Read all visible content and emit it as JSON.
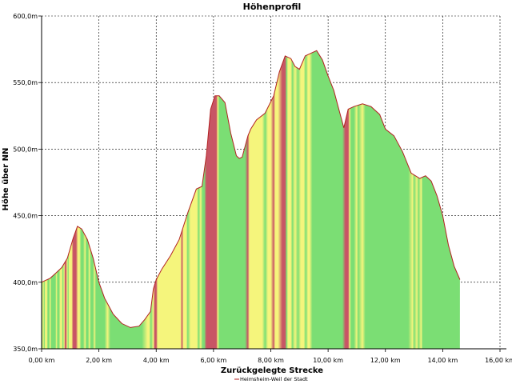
{
  "chart_data": {
    "type": "area",
    "title": "Höhenprofil",
    "xlabel": "Zurückgelegte Strecke",
    "ylabel": "Höhe über NN",
    "xlim": [
      0,
      16
    ],
    "ylim": [
      350,
      600
    ],
    "xticks": [
      0,
      2,
      4,
      6,
      8,
      10,
      12,
      14,
      16
    ],
    "xtick_labels": [
      "0,00 km",
      "2,00 km",
      "4,00 km",
      "6,00 km",
      "8,00 km",
      "10,00 km",
      "12,00 km",
      "14,00 km",
      "16,00 km"
    ],
    "yticks": [
      350,
      400,
      450,
      500,
      550,
      600
    ],
    "ytick_labels": [
      "350,0m",
      "400,0m",
      "450,0m",
      "500,0m",
      "550,0m",
      "600,0m"
    ],
    "grid": true,
    "legend": {
      "placement": "bottom-center"
    },
    "series": [
      {
        "name": "Heimsheim-Weil der Stadt",
        "line_color": "#b22222",
        "x": [
          0,
          0.1,
          0.3,
          0.5,
          0.7,
          0.9,
          1.1,
          1.25,
          1.4,
          1.6,
          1.8,
          2.0,
          2.2,
          2.5,
          2.8,
          3.1,
          3.4,
          3.6,
          3.8,
          3.9,
          4.0,
          4.2,
          4.5,
          4.8,
          5.1,
          5.4,
          5.6,
          5.75,
          5.9,
          6.05,
          6.2,
          6.4,
          6.6,
          6.8,
          6.9,
          7.0,
          7.2,
          7.3,
          7.5,
          7.8,
          8.1,
          8.3,
          8.5,
          8.7,
          8.85,
          9.0,
          9.2,
          9.4,
          9.6,
          9.8,
          10.0,
          10.2,
          10.4,
          10.55,
          10.7,
          10.9,
          11.2,
          11.5,
          11.8,
          12.0,
          12.3,
          12.6,
          12.9,
          13.2,
          13.4,
          13.6,
          13.8,
          14.0,
          14.2,
          14.4,
          14.6
        ],
        "y": [
          400,
          401,
          403,
          407,
          411,
          418,
          433,
          442,
          440,
          432,
          418,
          400,
          388,
          376,
          369,
          366,
          367,
          372,
          378,
          395,
          402,
          410,
          420,
          432,
          452,
          470,
          472,
          495,
          530,
          540,
          540,
          535,
          512,
          495,
          493,
          494,
          510,
          515,
          522,
          527,
          540,
          558,
          570,
          568,
          562,
          560,
          570,
          572,
          574,
          567,
          555,
          544,
          528,
          516,
          530,
          532,
          534,
          532,
          526,
          515,
          510,
          498,
          482,
          478,
          480,
          476,
          465,
          450,
          428,
          412,
          402
        ]
      }
    ],
    "gradient_colors": {
      "green": "#7bde74",
      "yellow": "#f5f57c",
      "red": "#c85565"
    },
    "gradient_stops": [
      [
        0.0,
        "green"
      ],
      [
        0.06,
        "yellow"
      ],
      [
        0.09,
        "green"
      ],
      [
        0.13,
        "yellow"
      ],
      [
        0.18,
        "yellow"
      ],
      [
        0.22,
        "green"
      ],
      [
        0.26,
        "green"
      ],
      [
        0.3,
        "yellow"
      ],
      [
        0.34,
        "green"
      ],
      [
        0.48,
        "green"
      ],
      [
        0.52,
        "yellow"
      ],
      [
        0.56,
        "green"
      ],
      [
        0.6,
        "green"
      ],
      [
        0.66,
        "yellow"
      ],
      [
        0.7,
        "yellow"
      ],
      [
        0.74,
        "green"
      ],
      [
        0.79,
        "yellow"
      ],
      [
        0.82,
        "red"
      ],
      [
        0.85,
        "red"
      ],
      [
        0.89,
        "yellow"
      ],
      [
        0.93,
        "green"
      ],
      [
        0.96,
        "yellow"
      ],
      [
        1.0,
        "yellow"
      ],
      [
        1.05,
        "yellow"
      ],
      [
        1.1,
        "red"
      ],
      [
        1.15,
        "red"
      ],
      [
        1.2,
        "red"
      ],
      [
        1.27,
        "yellow"
      ],
      [
        1.32,
        "yellow"
      ],
      [
        1.38,
        "green"
      ],
      [
        1.45,
        "green"
      ],
      [
        1.52,
        "yellow"
      ],
      [
        1.56,
        "green"
      ],
      [
        1.62,
        "green"
      ],
      [
        1.67,
        "yellow"
      ],
      [
        1.72,
        "green"
      ],
      [
        1.8,
        "green"
      ],
      [
        1.84,
        "yellow"
      ],
      [
        1.9,
        "green"
      ],
      [
        2.0,
        "green"
      ],
      [
        2.2,
        "green"
      ],
      [
        2.3,
        "yellow"
      ],
      [
        2.4,
        "green"
      ],
      [
        2.6,
        "green"
      ],
      [
        2.7,
        "green"
      ],
      [
        2.85,
        "green"
      ],
      [
        2.95,
        "green"
      ],
      [
        3.1,
        "green"
      ],
      [
        3.3,
        "green"
      ],
      [
        3.5,
        "green"
      ],
      [
        3.7,
        "yellow"
      ],
      [
        3.75,
        "yellow"
      ],
      [
        3.82,
        "green"
      ],
      [
        3.9,
        "yellow"
      ],
      [
        3.95,
        "red"
      ],
      [
        4.0,
        "red"
      ],
      [
        4.05,
        "yellow"
      ],
      [
        4.2,
        "yellow"
      ],
      [
        4.3,
        "yellow"
      ],
      [
        4.45,
        "yellow"
      ],
      [
        4.6,
        "yellow"
      ],
      [
        4.75,
        "yellow"
      ],
      [
        4.85,
        "yellow"
      ],
      [
        4.9,
        "red"
      ],
      [
        4.95,
        "yellow"
      ],
      [
        5.05,
        "yellow"
      ],
      [
        5.1,
        "green"
      ],
      [
        5.2,
        "yellow"
      ],
      [
        5.3,
        "yellow"
      ],
      [
        5.42,
        "yellow"
      ],
      [
        5.48,
        "green"
      ],
      [
        5.55,
        "yellow"
      ],
      [
        5.62,
        "green"
      ],
      [
        5.68,
        "green"
      ],
      [
        5.75,
        "red"
      ],
      [
        5.8,
        "red"
      ],
      [
        5.9,
        "red"
      ],
      [
        6.0,
        "red"
      ],
      [
        6.05,
        "red"
      ],
      [
        6.1,
        "red"
      ],
      [
        6.15,
        "yellow"
      ],
      [
        6.2,
        "green"
      ],
      [
        6.35,
        "green"
      ],
      [
        6.5,
        "green"
      ],
      [
        6.6,
        "green"
      ],
      [
        6.8,
        "green"
      ],
      [
        7.0,
        "green"
      ],
      [
        7.1,
        "green"
      ],
      [
        7.2,
        "red"
      ],
      [
        7.25,
        "yellow"
      ],
      [
        7.35,
        "yellow"
      ],
      [
        7.45,
        "yellow"
      ],
      [
        7.55,
        "yellow"
      ],
      [
        7.7,
        "yellow"
      ],
      [
        7.8,
        "green"
      ],
      [
        7.9,
        "yellow"
      ],
      [
        8.0,
        "yellow"
      ],
      [
        8.1,
        "red"
      ],
      [
        8.15,
        "yellow"
      ],
      [
        8.25,
        "yellow"
      ],
      [
        8.4,
        "red"
      ],
      [
        8.5,
        "red"
      ],
      [
        8.55,
        "green"
      ],
      [
        8.6,
        "yellow"
      ],
      [
        8.7,
        "yellow"
      ],
      [
        8.75,
        "green"
      ],
      [
        8.85,
        "yellow"
      ],
      [
        8.95,
        "green"
      ],
      [
        9.05,
        "yellow"
      ],
      [
        9.15,
        "yellow"
      ],
      [
        9.22,
        "green"
      ],
      [
        9.3,
        "yellow"
      ],
      [
        9.35,
        "yellow"
      ],
      [
        9.45,
        "green"
      ],
      [
        9.6,
        "green"
      ],
      [
        9.8,
        "green"
      ],
      [
        10.0,
        "green"
      ],
      [
        10.3,
        "green"
      ],
      [
        10.5,
        "green"
      ],
      [
        10.6,
        "red"
      ],
      [
        10.7,
        "red"
      ],
      [
        10.75,
        "yellow"
      ],
      [
        10.8,
        "green"
      ],
      [
        10.9,
        "green"
      ],
      [
        11.0,
        "yellow"
      ],
      [
        11.05,
        "green"
      ],
      [
        11.2,
        "yellow"
      ],
      [
        11.3,
        "green"
      ],
      [
        11.5,
        "green"
      ],
      [
        11.8,
        "green"
      ],
      [
        12.0,
        "green"
      ],
      [
        12.4,
        "green"
      ],
      [
        12.8,
        "green"
      ],
      [
        12.95,
        "yellow"
      ],
      [
        13.0,
        "green"
      ],
      [
        13.1,
        "yellow"
      ],
      [
        13.15,
        "green"
      ],
      [
        13.25,
        "yellow"
      ],
      [
        13.3,
        "green"
      ],
      [
        13.5,
        "green"
      ],
      [
        14.0,
        "green"
      ],
      [
        14.6,
        "green"
      ]
    ]
  }
}
